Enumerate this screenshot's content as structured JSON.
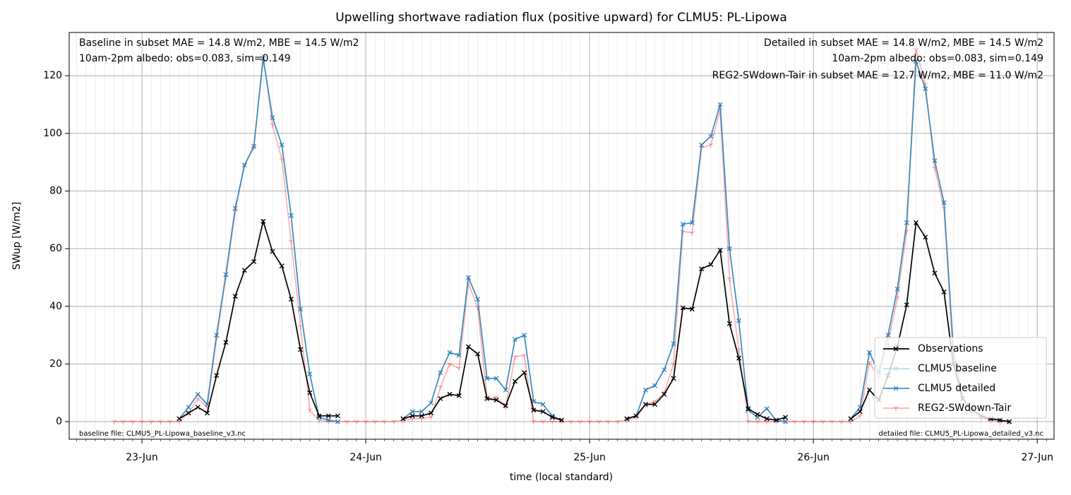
{
  "chart_data": {
    "type": "line",
    "title": "Upwelling shortwave radiation flux (positive upward) for CLMU5: PL-Lipowa",
    "xlabel": "time (local standard)",
    "ylabel": "SWup [W/m2]",
    "x": [
      -3,
      -2,
      -1,
      0,
      1,
      2,
      3,
      4,
      5,
      6,
      7,
      8,
      9,
      10,
      11,
      12,
      13,
      14,
      15,
      16,
      17,
      18,
      19,
      20,
      21,
      22,
      23,
      24,
      25,
      26,
      27,
      28,
      29,
      30,
      31,
      32,
      33,
      34,
      35,
      36,
      37,
      38,
      39,
      40,
      41,
      42,
      43,
      44,
      45,
      46,
      47,
      48,
      49,
      50,
      51,
      52,
      53,
      54,
      55,
      56,
      57,
      58,
      59,
      60,
      61,
      62,
      63,
      64,
      65,
      66,
      67,
      68,
      69,
      70,
      71,
      72,
      73,
      74,
      75,
      76,
      77,
      78,
      79,
      80,
      81,
      82,
      83,
      84,
      85,
      86,
      87,
      88,
      89,
      90,
      91,
      92,
      93
    ],
    "series": [
      {
        "name": "Observations",
        "color": "#000000",
        "marker": "x",
        "values": [
          null,
          null,
          null,
          null,
          null,
          null,
          null,
          1,
          3,
          5,
          3,
          16,
          27.5,
          43.5,
          52.5,
          55.5,
          69.5,
          59,
          54,
          42.5,
          25,
          10,
          2,
          2,
          2,
          null,
          null,
          null,
          null,
          null,
          null,
          1,
          2,
          2,
          3,
          8,
          9.5,
          9,
          26,
          23.5,
          8,
          7.5,
          5.5,
          14,
          17,
          4,
          3.5,
          1.5,
          0.5,
          null,
          null,
          null,
          null,
          null,
          null,
          1,
          2,
          6,
          6,
          9.5,
          15,
          39.5,
          39,
          53,
          54.5,
          59.5,
          34,
          22,
          4.5,
          2.5,
          1,
          0.5,
          1.5,
          null,
          null,
          null,
          null,
          null,
          null,
          1,
          3.5,
          11,
          7.5,
          16,
          26,
          40.5,
          69,
          64,
          51.5,
          45,
          20,
          8,
          4,
          2,
          1,
          0.5,
          0
        ]
      },
      {
        "name": "CLMU5 baseline",
        "color": "#add8e6",
        "marker": "x",
        "values": [
          null,
          null,
          null,
          null,
          null,
          null,
          null,
          1,
          5,
          9.5,
          6,
          30,
          51,
          74,
          89,
          95.5,
          126,
          105.5,
          96,
          71.5,
          39,
          16.5,
          1.5,
          0.5,
          0,
          null,
          null,
          null,
          null,
          null,
          null,
          1,
          3.5,
          3.5,
          6.5,
          17,
          24,
          23,
          50,
          42.5,
          15,
          15,
          11,
          28.5,
          30,
          7,
          6,
          2,
          0.5,
          null,
          null,
          null,
          null,
          null,
          null,
          1,
          2,
          11,
          12.5,
          18,
          27,
          68.5,
          69,
          96,
          99,
          110,
          60,
          35,
          4,
          1.5,
          4.5,
          0.5,
          0,
          null,
          null,
          null,
          null,
          null,
          null,
          1,
          5,
          24,
          17,
          30,
          46,
          69,
          125,
          115.5,
          90.5,
          76,
          25,
          8,
          4,
          2,
          1,
          0.5,
          0
        ]
      },
      {
        "name": "CLMU5 detailed",
        "color": "#1f77b4",
        "marker": "x",
        "values": [
          null,
          null,
          null,
          null,
          null,
          null,
          null,
          1,
          5,
          9.5,
          6,
          30,
          51,
          74,
          89,
          95.5,
          126,
          105.5,
          96,
          71.5,
          39,
          16.5,
          1.5,
          0.5,
          0,
          null,
          null,
          null,
          null,
          null,
          null,
          1,
          3.5,
          3.5,
          6.5,
          17,
          24,
          23,
          50,
          42.5,
          15,
          15,
          11,
          28.5,
          30,
          7,
          6,
          2,
          0.5,
          null,
          null,
          null,
          null,
          null,
          null,
          1,
          2,
          11,
          12.5,
          18,
          27,
          68.5,
          69,
          96,
          99,
          110,
          60,
          35,
          4,
          1.5,
          4.5,
          0.5,
          0,
          null,
          null,
          null,
          null,
          null,
          null,
          1,
          5,
          24,
          17,
          30,
          46,
          69,
          125,
          115.5,
          90.5,
          76,
          25,
          8,
          4,
          2,
          1,
          0.5,
          0
        ]
      },
      {
        "name": "REG2-SWdown-Tair",
        "color": "#ff0000",
        "marker": "tri",
        "values": [
          0,
          0,
          0,
          0,
          0,
          0,
          0,
          0,
          3,
          8,
          5,
          29,
          50,
          73,
          89,
          95,
          127,
          103,
          91,
          62.5,
          33,
          4,
          0.5,
          0,
          0,
          0,
          0,
          0,
          0,
          0,
          0,
          0.5,
          1,
          1,
          1.5,
          12,
          20,
          18.5,
          48,
          39.5,
          8,
          8.5,
          5,
          22.5,
          23,
          0,
          0,
          0,
          0,
          0,
          0,
          0,
          0,
          0,
          0,
          0.5,
          1.5,
          6,
          7,
          10,
          20,
          66,
          65.5,
          95,
          96,
          108,
          49.5,
          25,
          0,
          0,
          0,
          0,
          0,
          0,
          0,
          0,
          0,
          0,
          0,
          0,
          2,
          20.5,
          15.5,
          27,
          43,
          66,
          129,
          117,
          88,
          74,
          22,
          6,
          3,
          1.5,
          0.5,
          0,
          0
        ]
      }
    ],
    "xlim": [
      -7.8,
      97.8
    ],
    "xticks": [
      {
        "value": 0,
        "label": "23-Jun"
      },
      {
        "value": 24,
        "label": "24-Jun"
      },
      {
        "value": 48,
        "label": "25-Jun"
      },
      {
        "value": 72,
        "label": "26-Jun"
      },
      {
        "value": 96,
        "label": "27-Jun"
      }
    ],
    "ylim": [
      -6.1,
      135
    ],
    "yticks": [
      0,
      20,
      40,
      60,
      80,
      100,
      120
    ],
    "grid": true,
    "minor_grid": true,
    "legend": "lower right",
    "annotations": [
      {
        "text": "Baseline in subset MAE = 14.8 W/m2, MBE = 14.5 W/m2",
        "color": "#add8e6"
      },
      {
        "text": "10am-2pm albedo: obs=0.083, sim=0.149",
        "color": "#000000"
      },
      {
        "text": "Detailed in subset MAE = 14.8 W/m2, MBE = 14.5 W/m2",
        "color": "#1f77b4"
      },
      {
        "text": "10am-2pm albedo: obs=0.083, sim=0.149",
        "color": "#000000"
      },
      {
        "text": "REG2-SWdown-Tair in subset MAE = 12.7 W/m2, MBE = 11.0 W/m2",
        "color": "#ff0000"
      },
      {
        "text": "baseline file: CLMU5_PL-Lipowa_baseline_v3.nc",
        "color": "#000000"
      },
      {
        "text": "detailed file: CLMU5_PL-Lipowa_detailed_v3.nc",
        "color": "#000000"
      }
    ]
  }
}
